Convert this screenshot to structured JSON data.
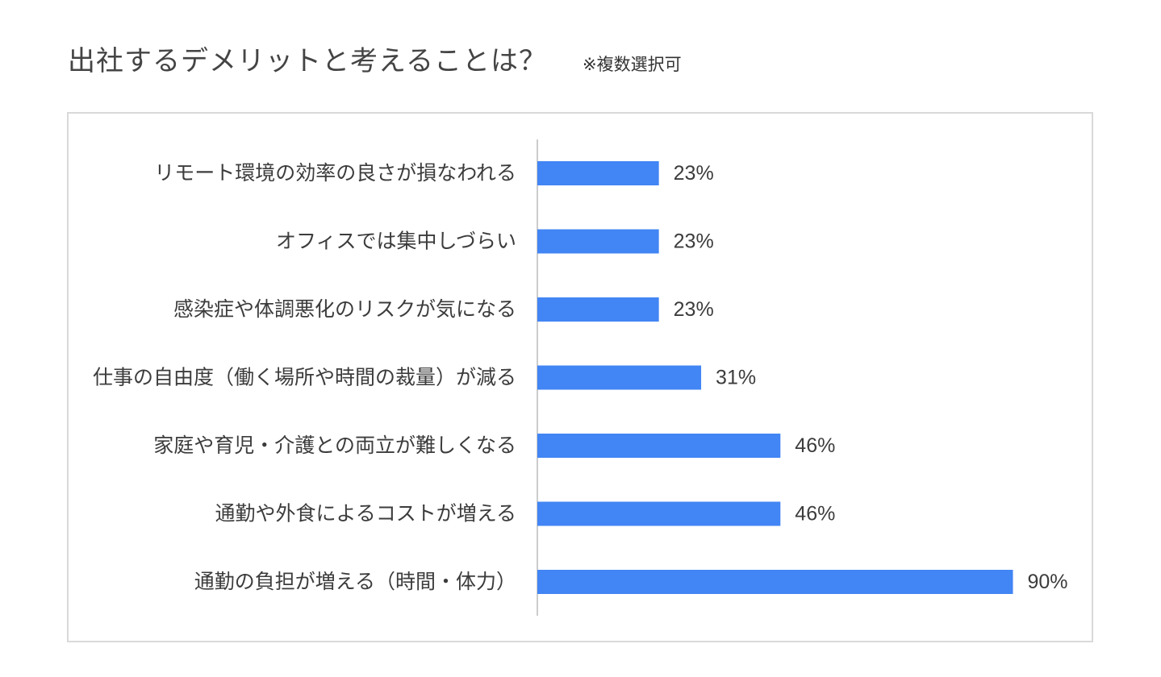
{
  "header": {
    "title": "出社するデメリットと考えることは？",
    "note": "※複数選択可"
  },
  "chart_data": {
    "type": "bar",
    "orientation": "horizontal",
    "categories": [
      "リモート環境の効率の良さが損なわれる",
      "オフィスでは集中しづらい",
      "感染症や体調悪化のリスクが気になる",
      "仕事の自由度（働く場所や時間の裁量）が減る",
      "家庭や育児・介護との両立が難しくなる",
      "通勤や外食によるコストが増える",
      "通勤の負担が増える（時間・体力）"
    ],
    "values": [
      23,
      23,
      23,
      31,
      46,
      46,
      90
    ],
    "value_labels": [
      "23%",
      "23%",
      "23%",
      "31%",
      "46%",
      "46%",
      "90%"
    ],
    "unit": "%",
    "xlim": [
      0,
      100
    ],
    "title": "出社するデメリットと考えることは？",
    "xlabel": "",
    "ylabel": "",
    "grid": false,
    "legend": "none",
    "colors": {
      "bar": "#4285f4",
      "axis": "#cccccc",
      "frame": "#d9d9d9"
    }
  }
}
